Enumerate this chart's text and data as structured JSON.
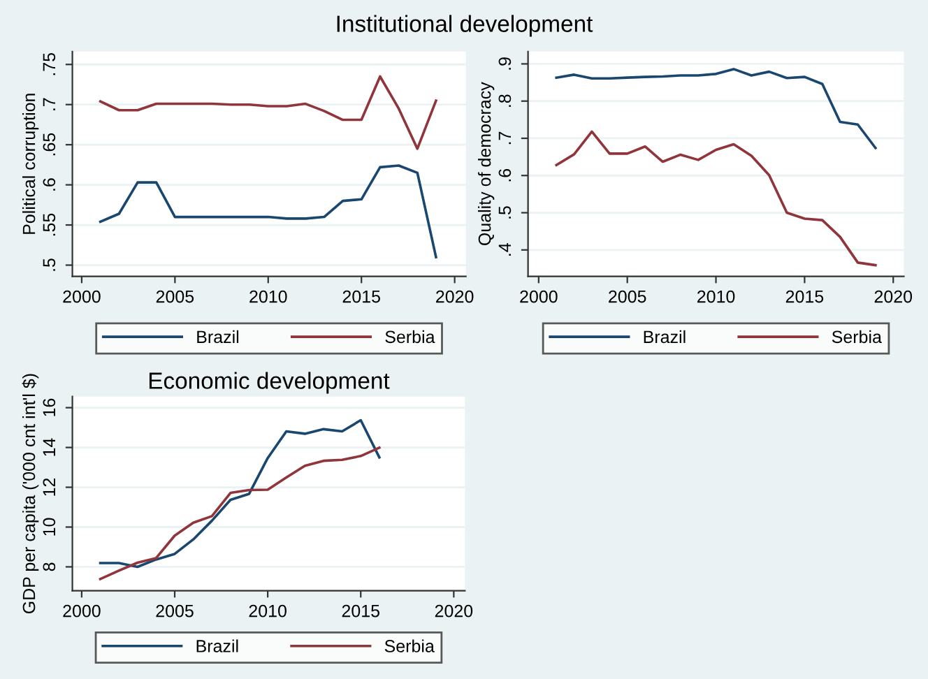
{
  "chart_data": [
    {
      "type": "line",
      "title": "Institutional development",
      "ylabel": "Political corruption",
      "x": [
        2001,
        2002,
        2003,
        2004,
        2005,
        2006,
        2007,
        2008,
        2009,
        2010,
        2011,
        2012,
        2013,
        2014,
        2015,
        2016,
        2017,
        2018,
        2019
      ],
      "series": [
        {
          "name": "Brazil",
          "color": "#1a476f",
          "values": [
            0.554,
            0.564,
            0.603,
            0.603,
            0.56,
            0.56,
            0.56,
            0.56,
            0.56,
            0.56,
            0.558,
            0.558,
            0.56,
            0.58,
            0.582,
            0.622,
            0.624,
            0.615,
            0.51
          ]
        },
        {
          "name": "Serbia",
          "color": "#90353b",
          "values": [
            0.704,
            0.693,
            0.693,
            0.701,
            0.701,
            0.701,
            0.701,
            0.7,
            0.7,
            0.698,
            0.698,
            0.701,
            0.692,
            0.681,
            0.681,
            0.735,
            0.695,
            0.645,
            0.705
          ]
        }
      ],
      "xlim": [
        1999.5,
        2020.6
      ],
      "xticks": [
        2000,
        2005,
        2010,
        2015,
        2020
      ],
      "ylim": [
        0.486,
        0.766
      ],
      "yticks": [
        {
          "value": 0.5,
          "label": ".5"
        },
        {
          "value": 0.55,
          "label": ".55"
        },
        {
          "value": 0.6,
          "label": ".6"
        },
        {
          "value": 0.65,
          "label": ".65"
        },
        {
          "value": 0.7,
          "label": ".7"
        },
        {
          "value": 0.75,
          "label": ".75"
        }
      ],
      "grid": "y",
      "legend": "bottom"
    },
    {
      "type": "line",
      "ylabel": "Quality of democracy",
      "x": [
        2001,
        2002,
        2003,
        2004,
        2005,
        2006,
        2007,
        2008,
        2009,
        2010,
        2011,
        2012,
        2013,
        2014,
        2015,
        2016,
        2017,
        2018,
        2019
      ],
      "series": [
        {
          "name": "Brazil",
          "color": "#1a476f",
          "values": [
            0.863,
            0.871,
            0.861,
            0.861,
            0.863,
            0.865,
            0.866,
            0.869,
            0.869,
            0.873,
            0.886,
            0.869,
            0.879,
            0.862,
            0.865,
            0.846,
            0.744,
            0.737,
            0.674
          ]
        },
        {
          "name": "Serbia",
          "color": "#90353b",
          "values": [
            0.628,
            0.657,
            0.718,
            0.659,
            0.659,
            0.678,
            0.637,
            0.656,
            0.642,
            0.669,
            0.684,
            0.653,
            0.601,
            0.5,
            0.484,
            0.48,
            0.435,
            0.366,
            0.359
          ]
        }
      ],
      "xlim": [
        1999.4,
        2020.6
      ],
      "xticks": [
        2000,
        2005,
        2010,
        2015,
        2020
      ],
      "ylim": [
        0.329,
        0.933
      ],
      "yticks": [
        {
          "value": 0.4,
          "label": ".4"
        },
        {
          "value": 0.5,
          "label": ".5"
        },
        {
          "value": 0.6,
          "label": ".6"
        },
        {
          "value": 0.7,
          "label": ".7"
        },
        {
          "value": 0.8,
          "label": ".8"
        },
        {
          "value": 0.9,
          "label": ".9"
        }
      ],
      "grid": "y",
      "legend": "bottom"
    },
    {
      "type": "line",
      "title": "Economic development",
      "ylabel": "GDP per capita ('000 cnt int'l $)",
      "x": [
        2001,
        2002,
        2003,
        2004,
        2005,
        2006,
        2007,
        2008,
        2009,
        2010,
        2011,
        2012,
        2013,
        2014,
        2015,
        2016
      ],
      "series": [
        {
          "name": "Brazil",
          "color": "#1a476f",
          "values": [
            8.19,
            8.19,
            8.0,
            8.37,
            8.65,
            9.38,
            10.32,
            11.37,
            11.67,
            13.47,
            14.81,
            14.69,
            14.92,
            14.81,
            15.37,
            13.5
          ]
        },
        {
          "name": "Serbia",
          "color": "#90353b",
          "values": [
            7.39,
            7.81,
            8.21,
            8.44,
            9.57,
            10.22,
            10.55,
            11.72,
            11.86,
            11.88,
            12.49,
            13.08,
            13.33,
            13.38,
            13.57,
            13.99
          ]
        }
      ],
      "xlim": [
        1999.5,
        2020.6
      ],
      "xticks": [
        2000,
        2005,
        2010,
        2015,
        2020
      ],
      "ylim": [
        6.8,
        16.56
      ],
      "yticks": [
        8,
        10,
        12,
        14,
        16
      ],
      "grid": "y",
      "legend": "bottom"
    }
  ]
}
